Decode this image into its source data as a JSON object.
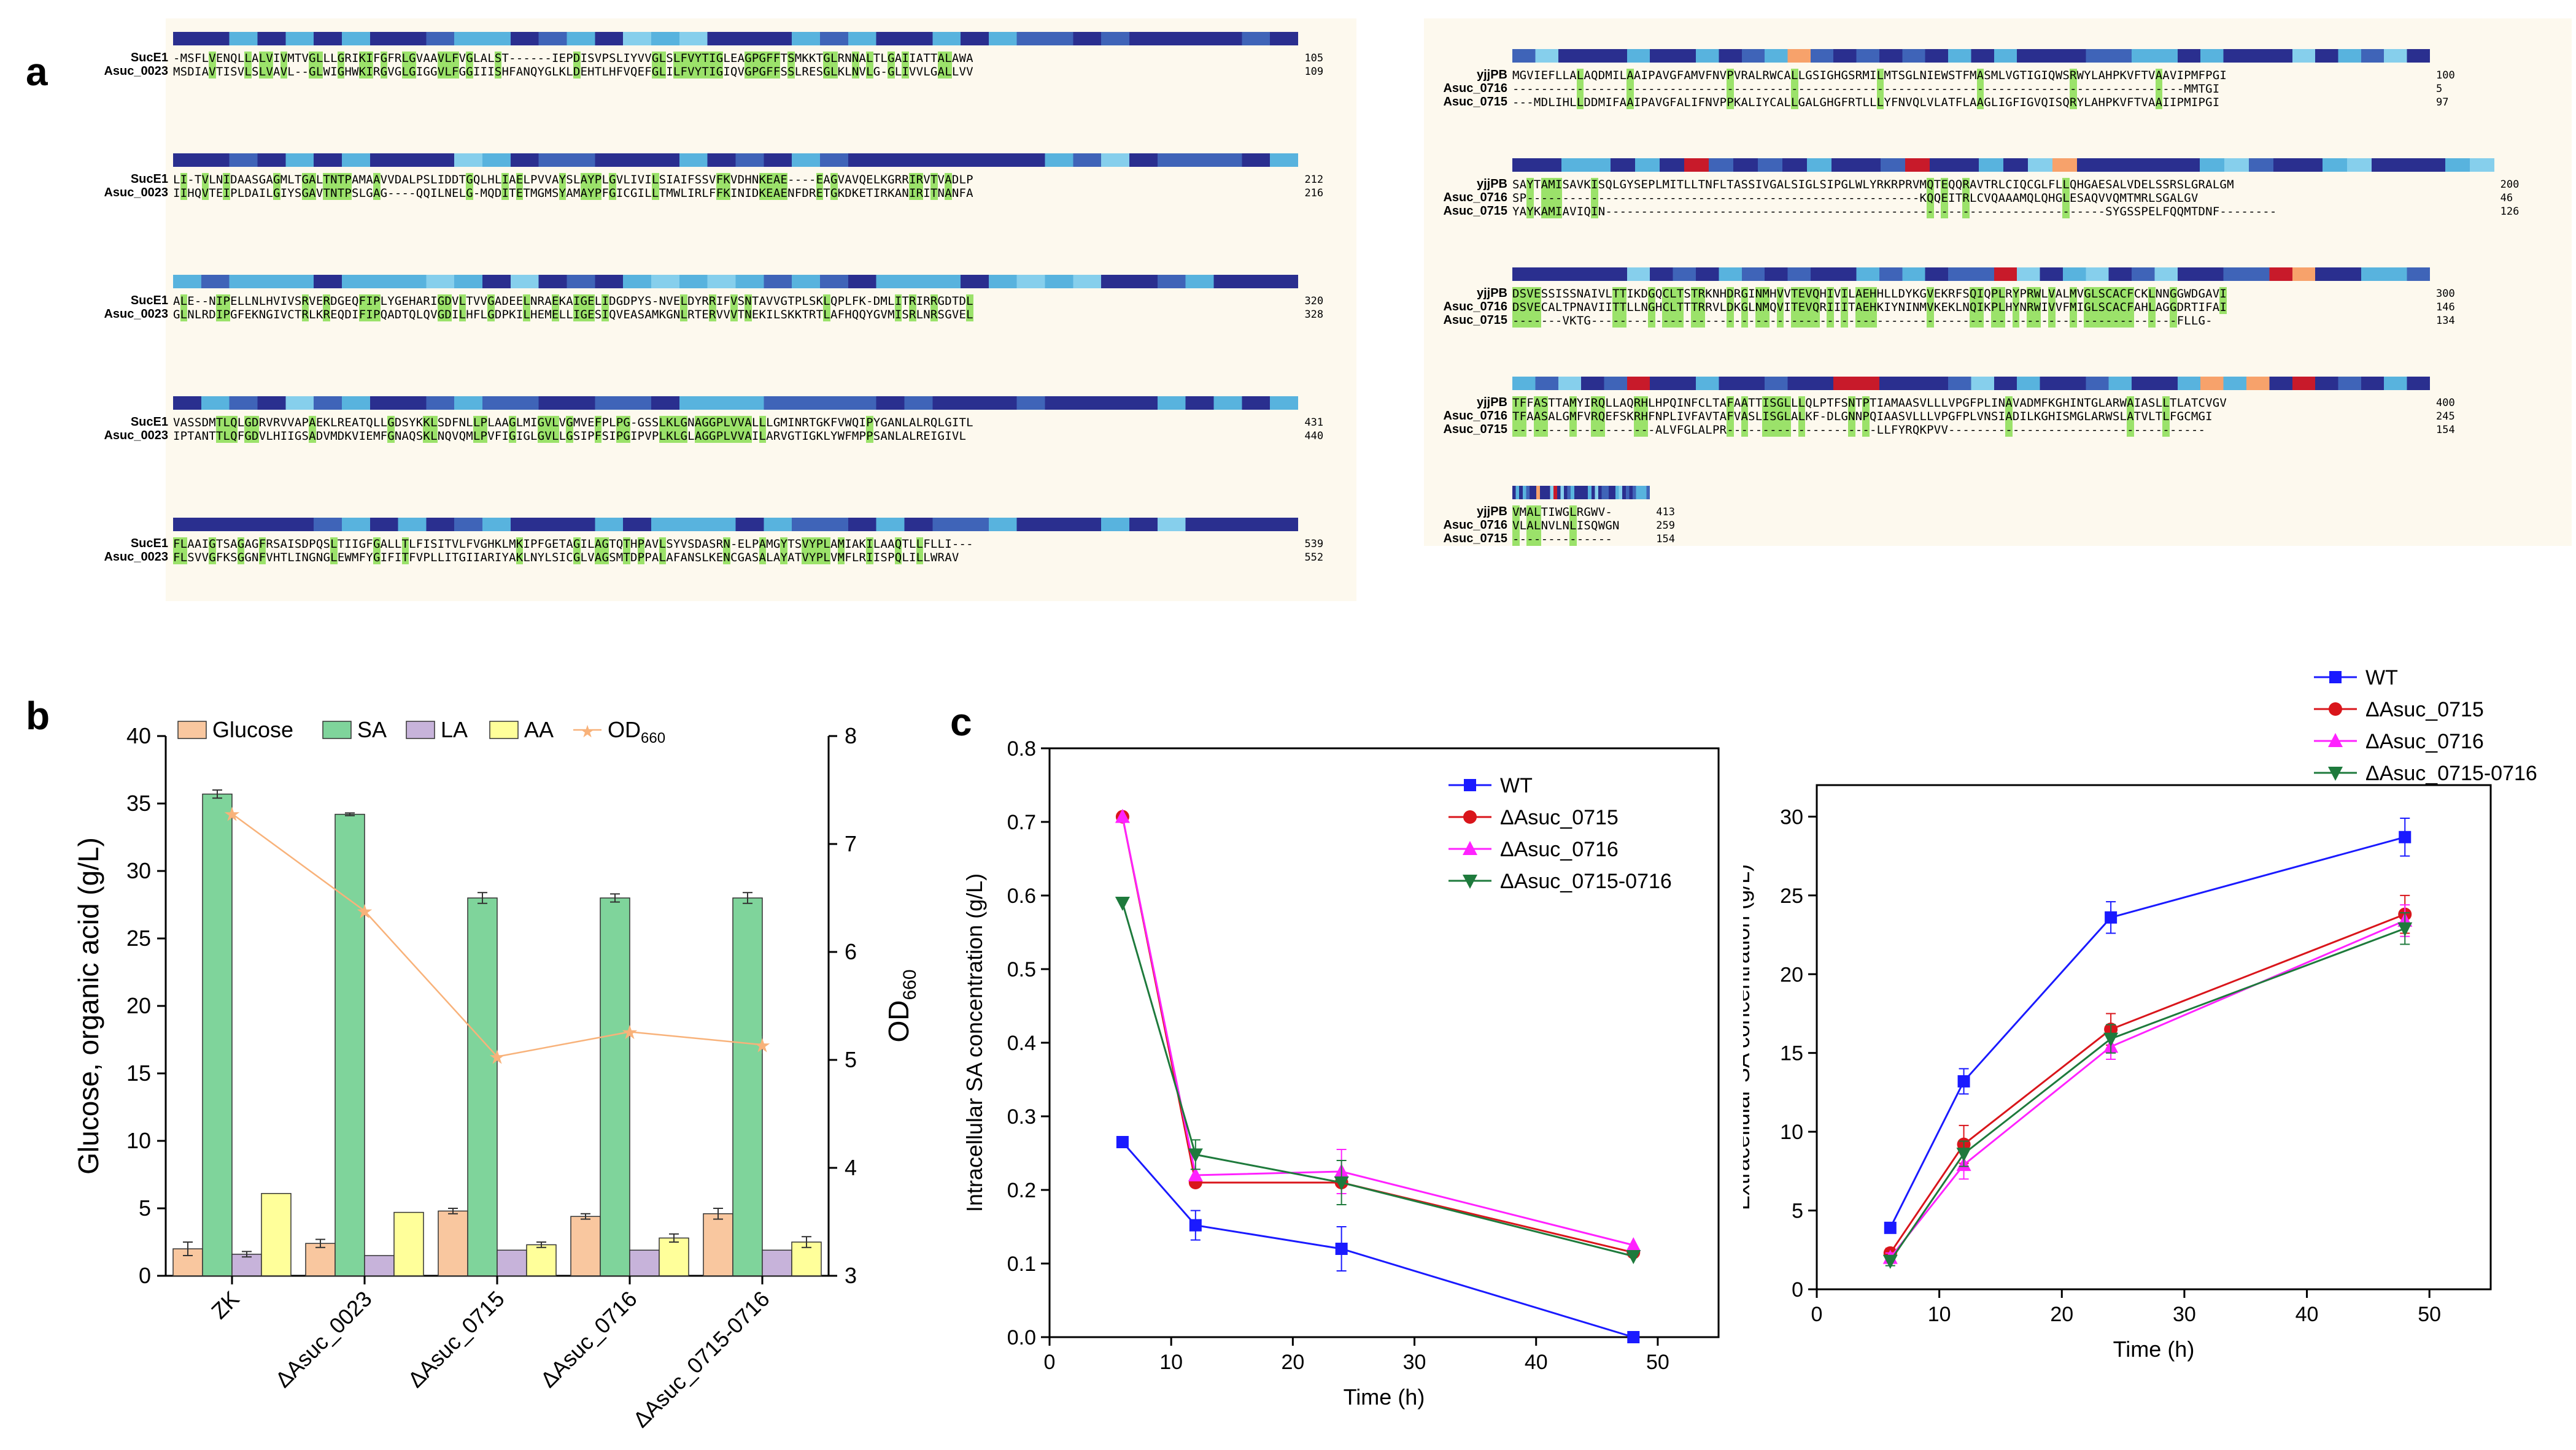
{
  "panels": {
    "a": "a",
    "b": "b",
    "c": "c"
  },
  "alignment_left": {
    "blocks": [
      {
        "names": [
          "SucE1",
          "Asuc_0023"
        ],
        "seqs": [
          "-MSFLVENQLLALVIVMTVGLLLGRIKIFGFRLGVAAVLFVGLALST------IEPDISVPSLIYVVGLSLFVYTIGLEAGPGFFTSMKKTGLRNNALTLGAIIATTALAWA",
          "MSDIAVTISVLSLVAVL--GLWIGHWKIRGVGLGIGGVLFGGIIISHFANQYGLKLDEHTLHFVQEFGLILFVYTIGIQVGPGFFSSLRESGLKLNVLG-GLIVVLGALLVV"
        ],
        "nums": [
          "105",
          "109"
        ]
      },
      {
        "names": [
          "SucE1",
          "Asuc_0023"
        ],
        "seqs": [
          "LI-TVLNIDAASGAGMLTGALTNTPAMAAVVDALPSLIDDTGQLHLIAELPVVAYSLAYPLGVLIVILSIAIFSSVFKVDHNKEAE----EAGVAVQELKGRRIRVTVADLP",
          "IIHQVTEIPLDAILGIYSGAVTNTPSLGAG----QQILNELG-MQDITETMGMSYAMAYPFGICGILLTMWLIRLFFKINIDKEAENFDRETGKDKETIRKANIRITNANFA"
        ],
        "nums": [
          "212",
          "216"
        ]
      },
      {
        "names": [
          "SucE1",
          "Asuc_0023"
        ],
        "seqs": [
          "ALE--NIPELLNLHVIVSRVERDGEQFIPLYGEHARIGDVLTVVGADEELNRAEKAIGELIDGDPYS-NVELDYRRIFVSNTAVVGTPLSKLQPLFK-DMLITRIRRGDTDL",
          "GLNLRDIPGFEKNGIVCTRLKREQDIFIPQADTQLQVGDILHFLGDPKILHEMELLIGESIQVEASAMKGNLRTERVVVTNEKILSKKTRTLAFHQQYGVMISRLNRSGVEL"
        ],
        "nums": [
          "320",
          "328"
        ]
      },
      {
        "names": [
          "SucE1",
          "Asuc_0023"
        ],
        "seqs": [
          "VASSDMTLQLGDRVRVVAPAEKLREATQLLGDSYKKLSDFNLLPLAAGLMIGVLVGMVEFPLPG-GSSLKLGNAGGPLVVALLLGMINRTGKFVWQIPYGANLALRQLGITL",
          "IPTANTTLQFGDVLHIIGSADVMDKVIEMFGNAQSKLNQVQMLPVFIGIGLGVLLGSIPFSIPGIPVPLKLGLAGGPLVVAILARVGTIGKLYWFMPPSANLALREIGIVL"
        ],
        "nums": [
          "431",
          "440"
        ]
      },
      {
        "names": [
          "SucE1",
          "Asuc_0023"
        ],
        "seqs": [
          "FLAAIGTSAGAGFRSAISDPQSLTIIGFGALLTLFISITVLFVGHKLMKIPFGETAGILAGTQTHPAVLSYVSDASRN-ELPAMGYTSVYPLAMIAKILAAQTLLFLLI---",
          "FLSVVGFKSGGNFVHTLINGNGLEWMFYGIFITFVPLLITGIIARIYAKLNYLSICGLVAGSMTDPPALAFANSLKENCGASALAYATVYPLVMFLRIISPQLILLWRAV"
        ],
        "nums": [
          "539",
          "552"
        ]
      }
    ]
  },
  "alignment_right": {
    "blocks": [
      {
        "names": [
          "yjjPB",
          "Asuc_0716",
          "Asuc_0715"
        ],
        "seqs": [
          "MGVIEFLLALAQDMILAAIPAVGFAMVFNVPVRALRWCALLGSIGHGSRMILMTSGLNIEWSTFMASMLVGTIGIQWSRWYLAHPKVFTVAAVIPMFPGI",
          "----------------------------------------------------------------------------------------------MMTGI",
          "---MDLIHLLDDMIFAAIPAVGFALIFNVPPKALIYCALLGALGHGFRTLLLYFNVQLVLATFLAAGLIGFIGVQISQRYLAHPKVFTVAAIIPMIPGI"
        ],
        "nums": [
          "100",
          "5",
          "97"
        ]
      },
      {
        "names": [
          "yjjPB",
          "Asuc_0716",
          "Asuc_0715"
        ],
        "seqs": [
          "SAYTAMISAVKISQLGYSEPLMITLLTNFLTASSIVGALSIGLSIPGLWLYRKRPRVMQTEQQRAVTRLCIQCGLFLLQHGAESALVDELSSRSLGRALGM",
          "SP-------------------------------------------------------KQQEITRLCVQAAAMQLQHGLESAQVVQMTMRLSGALGV",
          "YAYKAMIAVIQIN----------------------------------------------------------------------SYGSSPELFQQMTDNF--------"
        ],
        "nums": [
          "200",
          "46",
          "126"
        ]
      },
      {
        "names": [
          "yjjPB",
          "Asuc_0716",
          "Asuc_0715"
        ],
        "seqs": [
          "DSVESSISSNAIVLTTIKDGQCLTSTRKNHDRGINMHVVTEVQHIVILAEHHLLDYKGVEKRFSQIQPLRYPRWLVALMVGLSCACFCKLNNGGWDGAVI",
          "DSVECALTPNAVIITTLLNGHCLTTTRRVLDKGLNMQVITEVQRIIITAEHKIYNINMVKEKLNQIKPLHYNRWIVVFMIGLSCACFAHLAGGDRTIFAI",
          "-------VKTG----------------------------------------------------------------------------------FLLG-"
        ],
        "nums": [
          "300",
          "146",
          "134"
        ]
      },
      {
        "names": [
          "yjjPB",
          "Asuc_0716",
          "Asuc_0715"
        ],
        "seqs": [
          "TFFASTTAMYIRQLLAQRHLHPQINFCLTAFAATTISGLLLQLPTFSNTPTIAMAASVLLLVPGFPLINAVADMFKGHINTGLARWAIASLLTLATCVGV",
          "TFAASALGMFVRQEFSKRHFNPLIVFAVTAFVASLISGLALKF-DLGNNPQIAASVLLLVPGFPLVNSIADILKGHISMGLARWSLATVLTLFGCMGI",
          "--------------------ALVFGLALPR---------------------LLFYRQKPVV------------------------------------"
        ],
        "nums": [
          "400",
          "245",
          "154"
        ]
      },
      {
        "names": [
          "yjjPB",
          "Asuc_0716",
          "Asuc_0715"
        ],
        "seqs": [
          "VMALTIWGLRGWV-",
          "VLALNVLNLISQWGN",
          "--------------"
        ],
        "nums": [
          "413",
          "259",
          "154"
        ]
      }
    ]
  },
  "chart_b": {
    "legend": [
      "Glucose",
      "SA",
      "LA",
      "AA",
      "OD660"
    ],
    "ylabel_left": "Glucose, organic acid (g/L)",
    "ylabel_right": "OD660",
    "colors": {
      "Glucose": "#f9c79f",
      "SA": "#7fd49b",
      "LA": "#c7b3da",
      "AA": "#ffff9a",
      "OD660": "#f8b27a"
    }
  },
  "chart_data": [
    {
      "type": "bar",
      "categories": [
        "ZK",
        "ΔAsuc_0023",
        "ΔAsuc_0715",
        "ΔAsuc_0716",
        "ΔAsuc_0715-0716"
      ],
      "series": [
        {
          "name": "Glucose",
          "values": [
            2.0,
            2.4,
            4.8,
            4.4,
            4.6
          ],
          "errors": [
            0.5,
            0.3,
            0.2,
            0.2,
            0.4
          ]
        },
        {
          "name": "SA",
          "values": [
            35.7,
            34.2,
            28.0,
            28.0,
            28.0
          ],
          "errors": [
            0.3,
            0.1,
            0.4,
            0.3,
            0.4
          ]
        },
        {
          "name": "LA",
          "values": [
            1.6,
            1.5,
            1.9,
            1.9,
            1.9
          ],
          "errors": [
            0.2,
            0.0,
            0.0,
            0.0,
            0.0
          ]
        },
        {
          "name": "AA",
          "values": [
            6.1,
            4.7,
            2.3,
            2.8,
            2.5
          ],
          "errors": [
            0.0,
            0.0,
            0.2,
            0.3,
            0.4
          ]
        },
        {
          "name": "OD660",
          "axis": "right",
          "values": [
            7.28,
            6.38,
            5.03,
            5.26,
            5.14
          ],
          "errors": [
            0.05,
            0.0,
            0.06,
            0.06,
            0.08
          ]
        }
      ],
      "ylim": [
        0,
        40
      ],
      "yticks": [
        0,
        5,
        10,
        15,
        20,
        25,
        30,
        35,
        40
      ],
      "y2lim": [
        3,
        8
      ],
      "y2ticks": [
        3,
        4,
        5,
        6,
        7,
        8
      ],
      "ylabel": "Glucose, organic acid (g/L)",
      "y2label": "OD660",
      "legend_position": "top"
    },
    {
      "type": "line",
      "x": [
        6,
        12,
        24,
        48
      ],
      "series": [
        {
          "name": "WT",
          "values": [
            0.265,
            0.152,
            0.12,
            0.0
          ],
          "errors": [
            0.0,
            0.02,
            0.03,
            0.0
          ]
        },
        {
          "name": "ΔAsuc_0715",
          "values": [
            0.707,
            0.21,
            0.21,
            0.115
          ],
          "errors": [
            0.0,
            0.0,
            0.0,
            0.0
          ]
        },
        {
          "name": "ΔAsuc_0716",
          "values": [
            0.707,
            0.22,
            0.225,
            0.125
          ],
          "errors": [
            0.0,
            0.0,
            0.03,
            0.0
          ]
        },
        {
          "name": "ΔAsuc_0715-0716",
          "values": [
            0.59,
            0.248,
            0.21,
            0.11
          ],
          "errors": [
            0.0,
            0.02,
            0.03,
            0.0
          ]
        }
      ],
      "xlim": [
        0,
        55
      ],
      "xticks": [
        0,
        10,
        20,
        30,
        40,
        50
      ],
      "ylim": [
        0,
        0.8
      ],
      "yticks": [
        0.0,
        0.1,
        0.2,
        0.3,
        0.4,
        0.5,
        0.6,
        0.7,
        0.8
      ],
      "xlabel": "Time (h)",
      "ylabel": "Intracellular SA concentration (g/L)",
      "legend_position": "top-right"
    },
    {
      "type": "line",
      "x": [
        6,
        12,
        24,
        48
      ],
      "series": [
        {
          "name": "WT",
          "values": [
            3.9,
            13.2,
            23.6,
            28.7
          ],
          "errors": [
            0.3,
            0.8,
            1.0,
            1.2
          ]
        },
        {
          "name": "ΔAsuc_0715",
          "values": [
            2.3,
            9.2,
            16.5,
            23.8
          ],
          "errors": [
            0.3,
            1.2,
            1.0,
            1.2
          ]
        },
        {
          "name": "ΔAsuc_0716",
          "values": [
            2.0,
            7.9,
            15.4,
            23.4
          ],
          "errors": [
            0.3,
            0.9,
            0.8,
            1.0
          ]
        },
        {
          "name": "ΔAsuc_0715-0716",
          "values": [
            1.8,
            8.6,
            15.9,
            22.9
          ],
          "errors": [
            0.3,
            0.8,
            0.9,
            1.0
          ]
        }
      ],
      "xlim": [
        0,
        55
      ],
      "xticks": [
        0,
        10,
        20,
        30,
        40,
        50
      ],
      "ylim": [
        0,
        32
      ],
      "yticks": [
        0,
        5,
        10,
        15,
        20,
        25,
        30
      ],
      "xlabel": "Time (h)",
      "ylabel": "Extracellular SA concentration (g/L)",
      "legend_position": "top-left"
    }
  ],
  "line_styles": {
    "WT": {
      "color": "#1a1aff",
      "marker": "square"
    },
    "ΔAsuc_0715": {
      "color": "#d9151b",
      "marker": "circle"
    },
    "ΔAsuc_0716": {
      "color": "#ff22ff",
      "marker": "triangle"
    },
    "ΔAsuc_0715-0716": {
      "color": "#1e7a3c",
      "marker": "triangle-down"
    }
  },
  "conservation_palette": [
    "#2a2f8f",
    "#3f64b8",
    "#58b3de",
    "#86cfec",
    "#f7a26b",
    "#c81a2a"
  ]
}
